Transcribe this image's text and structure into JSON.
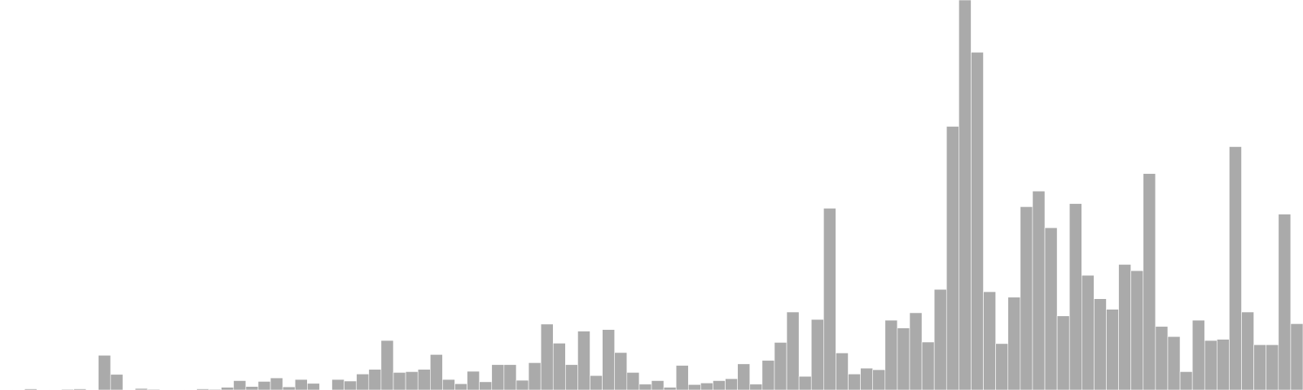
{
  "colors": {
    "background": "#ffffff",
    "bar": "#aaaaaa",
    "bar_edge": "#ffffff"
  },
  "chart_data": {
    "type": "bar",
    "title": "",
    "xlabel": "",
    "ylabel": "",
    "grid": false,
    "legend": "none",
    "axes_visible": false,
    "ylim": [
      0,
      1000
    ],
    "values": [
      1,
      0,
      3,
      0,
      1,
      2,
      3,
      0,
      89,
      40,
      0,
      4,
      2,
      0,
      1,
      1,
      3,
      2,
      7,
      24,
      9,
      22,
      31,
      8,
      27,
      17,
      0,
      27,
      23,
      41,
      53,
      127,
      45,
      47,
      53,
      91,
      27,
      16,
      48,
      21,
      65,
      65,
      25,
      70,
      169,
      120,
      65,
      151,
      37,
      155,
      96,
      45,
      15,
      24,
      7,
      63,
      14,
      18,
      24,
      29,
      67,
      15,
      76,
      122,
      200,
      35,
      181,
      466,
      95,
      41,
      56,
      52,
      179,
      159,
      198,
      123,
      258,
      676,
      1000,
      866,
      252,
      119,
      238,
      470,
      510,
      416,
      190,
      478,
      294,
      234,
      207,
      322,
      306,
      555,
      163,
      137,
      47,
      179,
      127,
      130,
      624,
      200,
      116,
      116,
      451,
      170
    ]
  }
}
